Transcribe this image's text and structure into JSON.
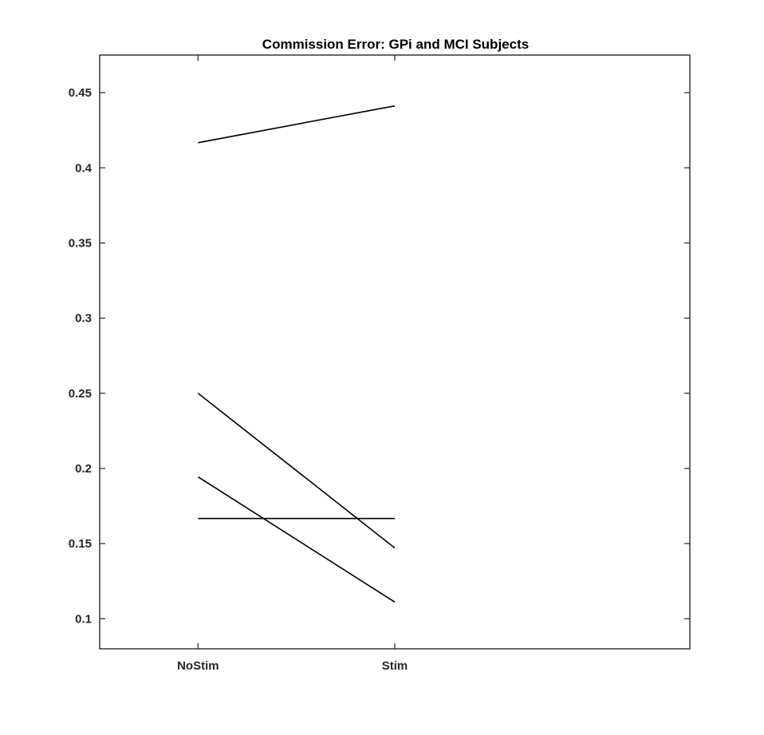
{
  "chart_data": {
    "type": "line",
    "title": "Commission Error: GPi and MCI Subjects",
    "xlabel": "",
    "ylabel": "",
    "categories": [
      "NoStim",
      "Stim"
    ],
    "xlim": [
      0.5,
      3.5
    ],
    "ylim": [
      0.08,
      0.475
    ],
    "yticks": [
      0.1,
      0.15,
      0.2,
      0.25,
      0.3,
      0.35,
      0.4,
      0.45
    ],
    "ytick_labels": [
      "0.1",
      "0.15",
      "0.2",
      "0.25",
      "0.3",
      "0.35",
      "0.4",
      "0.45"
    ],
    "grid": false,
    "legend": "none",
    "series": [
      {
        "values": [
          0.4167,
          0.4412
        ]
      },
      {
        "values": [
          0.25,
          0.1471
        ]
      },
      {
        "values": [
          0.1944,
          0.1111
        ]
      },
      {
        "values": [
          0.1667,
          0.1667
        ]
      }
    ],
    "colors": {
      "line": "#000000",
      "axis": "#262626",
      "background": "#ffffff"
    }
  }
}
